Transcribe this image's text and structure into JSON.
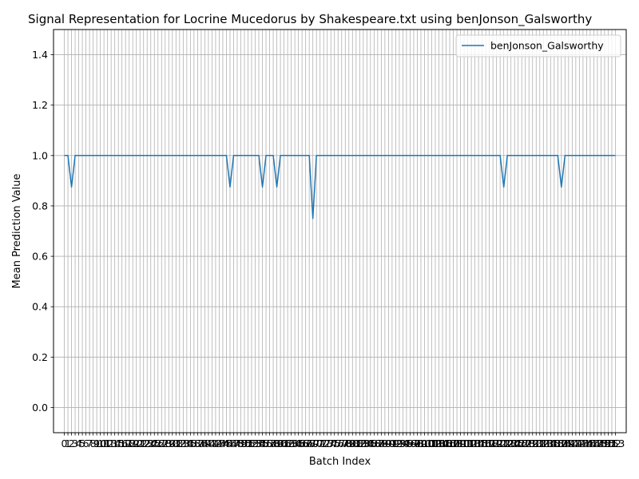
{
  "chart_data": {
    "type": "line",
    "title": "Signal Representation for Locrine Mucedorus by Shakespeare.txt using benJonson_Galsworthy",
    "xlabel": "Batch Index",
    "ylabel": "Mean Prediction Value",
    "xlim": [
      -3,
      156
    ],
    "ylim": [
      -0.1,
      1.5
    ],
    "yticks": [
      0.0,
      0.2,
      0.4,
      0.6,
      0.8,
      1.0,
      1.2,
      1.4
    ],
    "ytick_labels": [
      "0.0",
      "0.2",
      "0.4",
      "0.6",
      "0.8",
      "1.0",
      "1.2",
      "1.4"
    ],
    "grid": true,
    "legend": "upper right",
    "series": [
      {
        "name": "benJonson_Galsworthy",
        "color": "#1f77b4",
        "x": [
          0,
          1,
          2,
          3,
          4,
          45,
          46,
          47,
          54,
          55,
          56,
          58,
          59,
          60,
          68,
          69,
          70,
          121,
          122,
          123,
          137,
          138,
          139,
          153
        ],
        "y": [
          1.0,
          1.0,
          0.875,
          1.0,
          1.0,
          1.0,
          0.875,
          1.0,
          1.0,
          0.875,
          1.0,
          1.0,
          0.875,
          1.0,
          1.0,
          0.75,
          1.0,
          1.0,
          0.875,
          1.0,
          1.0,
          0.875,
          1.0,
          1.0
        ]
      }
    ],
    "x_count": 154
  }
}
